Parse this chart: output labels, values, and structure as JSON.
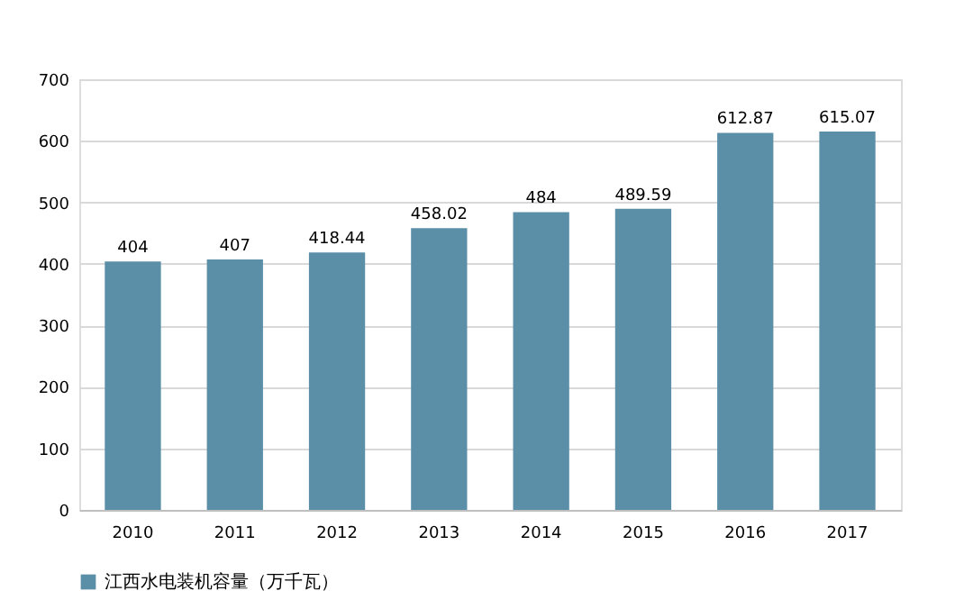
{
  "chart_data": {
    "type": "bar",
    "categories": [
      "2010",
      "2011",
      "2012",
      "2013",
      "2014",
      "2015",
      "2016",
      "2017"
    ],
    "series": [
      {
        "name": "江西水电装机容量（万千瓦）",
        "color": "#5b8fa8",
        "values": [
          404,
          407,
          418.44,
          458.02,
          484,
          489.59,
          612.87,
          615.07
        ]
      }
    ],
    "ylim": [
      0,
      700
    ],
    "yticks": [
      0,
      100,
      200,
      300,
      400,
      500,
      600,
      700
    ],
    "grid": "y",
    "legend": "bottom",
    "data_labels": true
  }
}
